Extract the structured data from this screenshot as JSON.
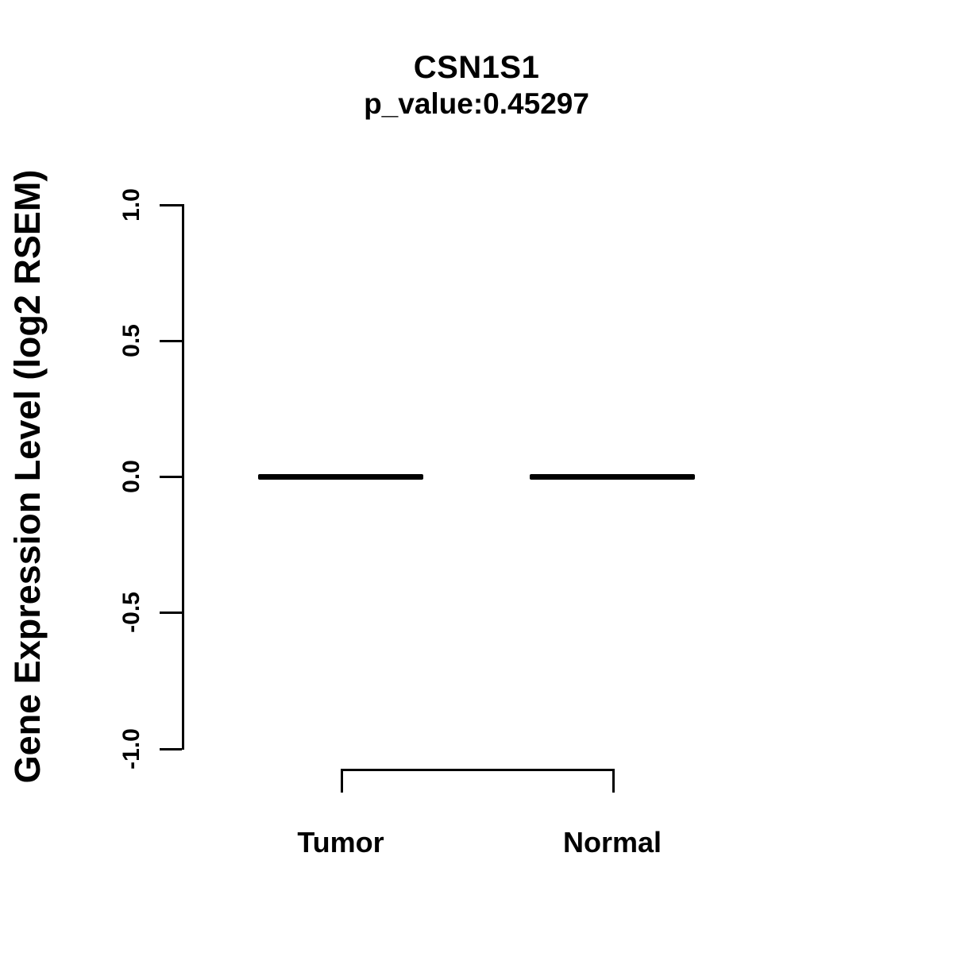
{
  "title": "CSN1S1",
  "subtitle": "p_value:0.45297",
  "colors": {
    "foreground": "#000000",
    "background": "#ffffff"
  },
  "chart_data": {
    "type": "boxplot",
    "title": "CSN1S1",
    "subtitle": "p_value:0.45297",
    "gene": "CSN1S1",
    "p_value": 0.45297,
    "ylabel": "Gene Expression Level (log2 RSEM)",
    "ylim": [
      -1.0,
      1.0
    ],
    "yticks": [
      1.0,
      0.5,
      0.0,
      -0.5,
      -1.0
    ],
    "ytick_labels": [
      "1.0",
      "0.5",
      "0.0",
      "-0.5",
      "-1.0"
    ],
    "grid": false,
    "legend": "none",
    "categories": [
      "Tumor",
      "Normal"
    ],
    "series": [
      {
        "name": "Tumor",
        "median": 0.0,
        "q1": 0.0,
        "q3": 0.0,
        "whisker_low": 0.0,
        "whisker_high": 0.0
      },
      {
        "name": "Normal",
        "median": 0.0,
        "q1": 0.0,
        "q3": 0.0,
        "whisker_low": 0.0,
        "whisker_high": 0.0
      }
    ],
    "comparison_bracket": {
      "from": "Tumor",
      "to": "Normal"
    }
  }
}
